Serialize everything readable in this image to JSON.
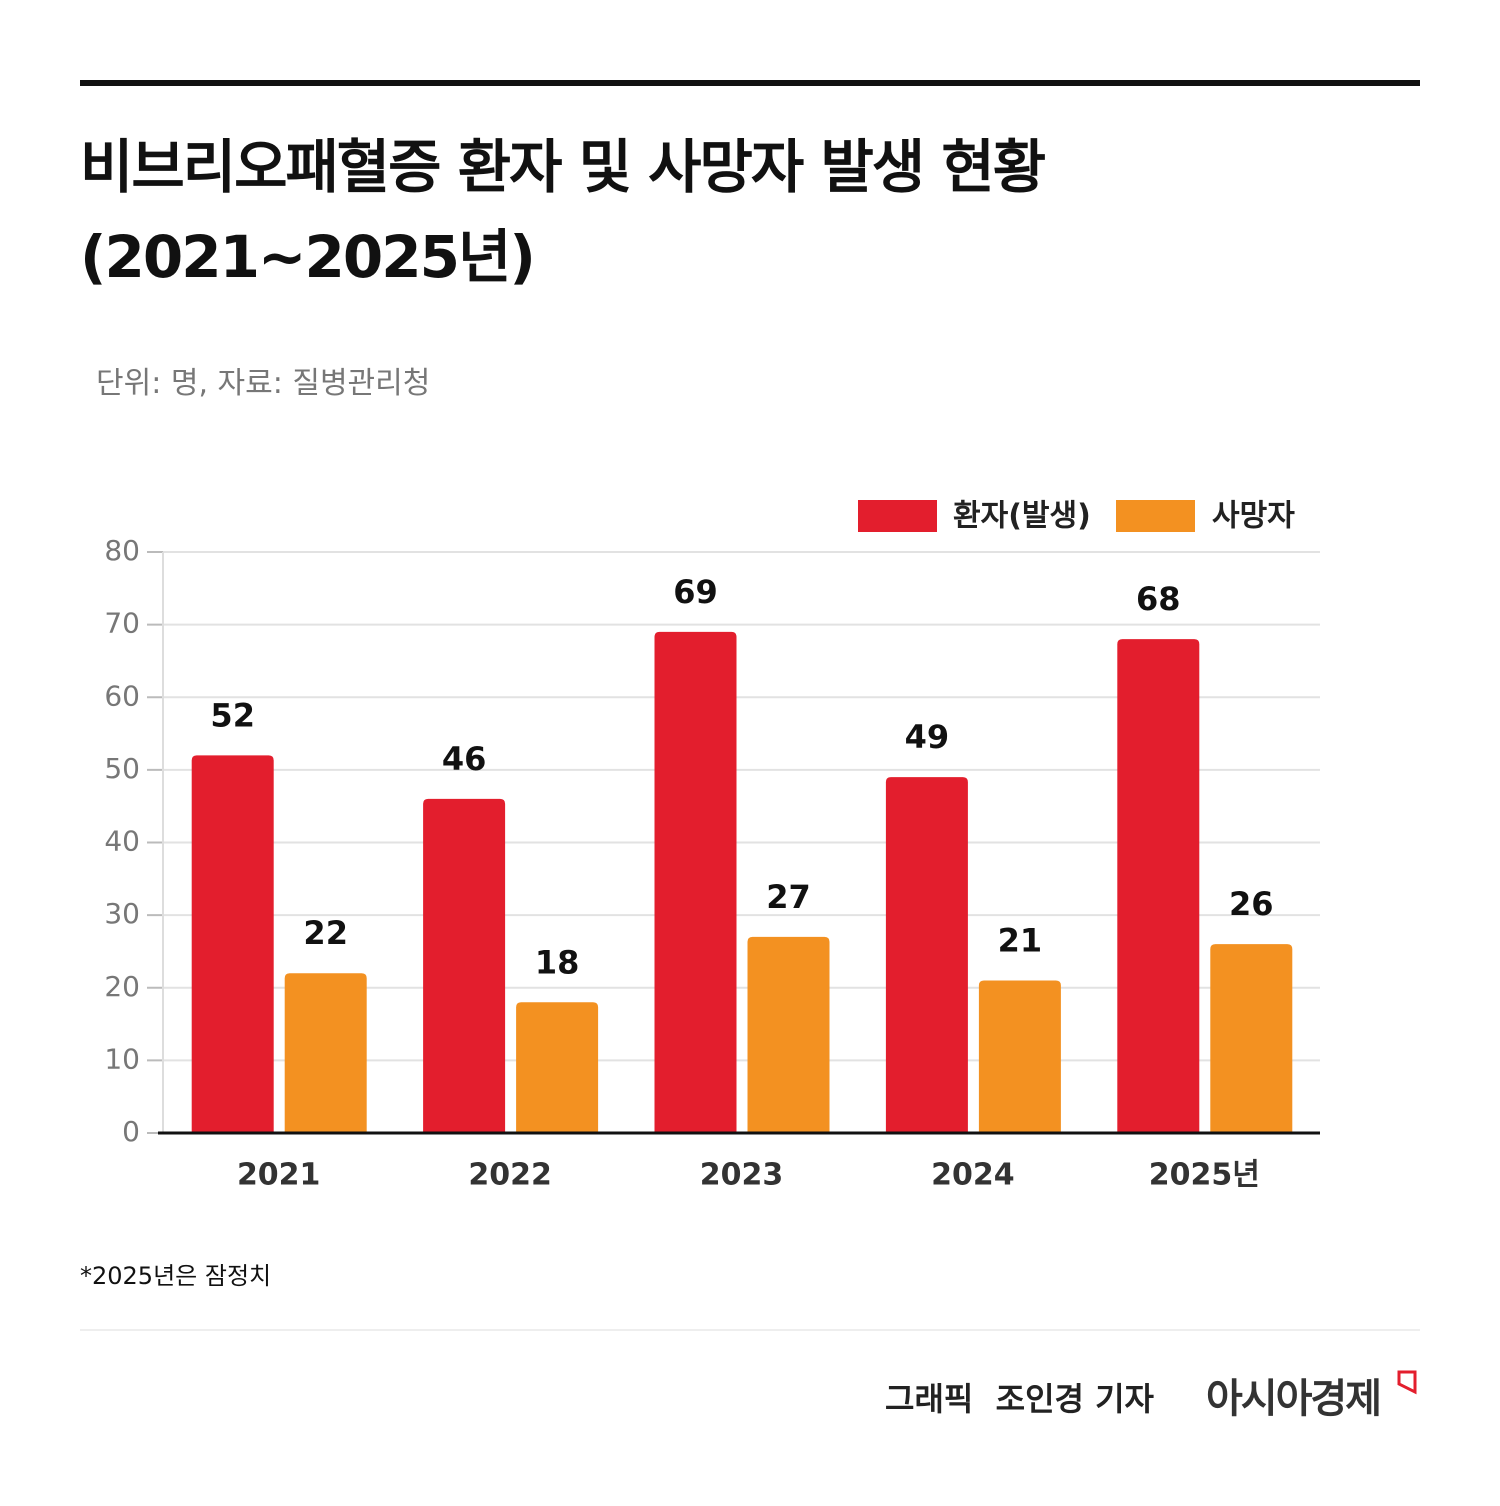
{
  "chart_data": {
    "type": "bar",
    "title": "비브리오패혈증 환자 및 사망자 발생 현황 (2021~2025년)",
    "subtitle": "단위: 명, 자료: 질병관리청",
    "categories": [
      "2021",
      "2022",
      "2023",
      "2024",
      "2025년"
    ],
    "series": [
      {
        "name": "환자(발생)",
        "color": "#e31e2d",
        "values": [
          52,
          46,
          69,
          49,
          68
        ]
      },
      {
        "name": "사망자",
        "color": "#f39121",
        "values": [
          22,
          18,
          27,
          21,
          26
        ]
      }
    ],
    "ylim": [
      0,
      80
    ],
    "yticks": [
      0,
      10,
      20,
      30,
      40,
      50,
      60,
      70,
      80
    ],
    "grid": true,
    "legend": "upper right",
    "note": "*2025년은 잠정치",
    "credit": "그래픽  조인경 기자",
    "brand": "아시아경제"
  }
}
